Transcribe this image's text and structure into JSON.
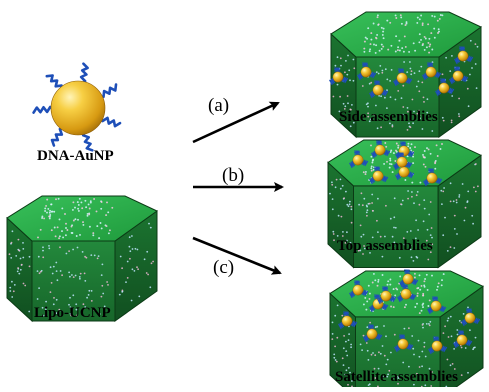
{
  "labels": {
    "dna_aunp": "DNA-AuNP",
    "lipo_ucnp": "Lipo-UCNP",
    "side": "Side assemblies",
    "top": "Top assemblies",
    "satellite": "Satellite assemblies"
  },
  "paths": {
    "a": "(a)",
    "b": "(b)",
    "c": "(c)"
  },
  "colors": {
    "top_face": "#2aa84a",
    "side_light": "#1f7a35",
    "side_dark": "#155c26",
    "edge": "#0b3a15",
    "gold": "#f2b820",
    "dna_strand": "#1e4fb8",
    "arrow": "#000000"
  }
}
